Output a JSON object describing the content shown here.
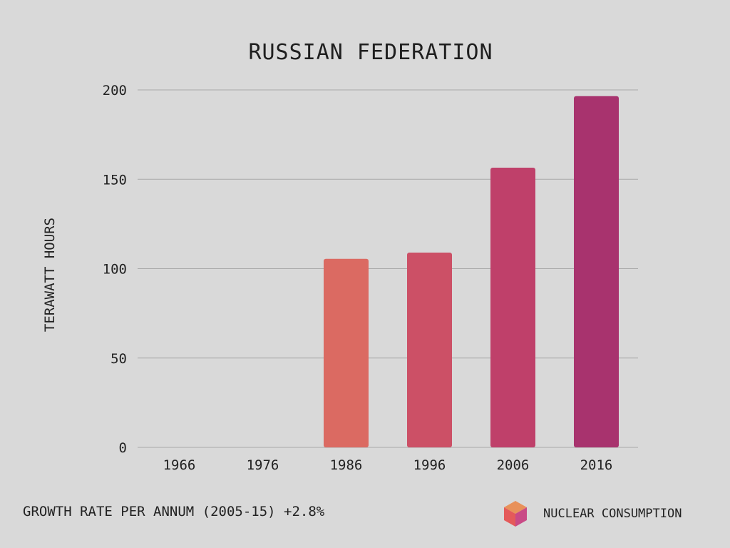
{
  "chart_data": {
    "type": "bar",
    "title": "RUSSIAN FEDERATION",
    "ylabel": "TERAWATT HOURS",
    "xlabel": "",
    "categories": [
      "1966",
      "1976",
      "1986",
      "1996",
      "2006",
      "2016"
    ],
    "values": [
      0,
      0,
      105.5,
      109,
      156.5,
      196.5
    ],
    "bar_colors": [
      "#db6a62",
      "#db6a62",
      "#db6a62",
      "#cc5066",
      "#bf406a",
      "#a8336e"
    ],
    "ylim": [
      0,
      200
    ],
    "yticks": [
      0,
      50,
      100,
      150,
      200
    ],
    "grid": true,
    "legend": {
      "label": "NUCLEAR CONSUMPTION",
      "placement": "bottom-right",
      "icon": "cube-icon"
    }
  },
  "footer": {
    "growth_text": "GROWTH RATE PER ANNUM (2005-15) +2.8%"
  },
  "colors": {
    "background": "#d9d9d9",
    "gridline": "#a9a9a9",
    "text": "#222222",
    "cube_top": "#e8915a",
    "cube_left": "#e45a5a",
    "cube_right": "#c94a86"
  }
}
